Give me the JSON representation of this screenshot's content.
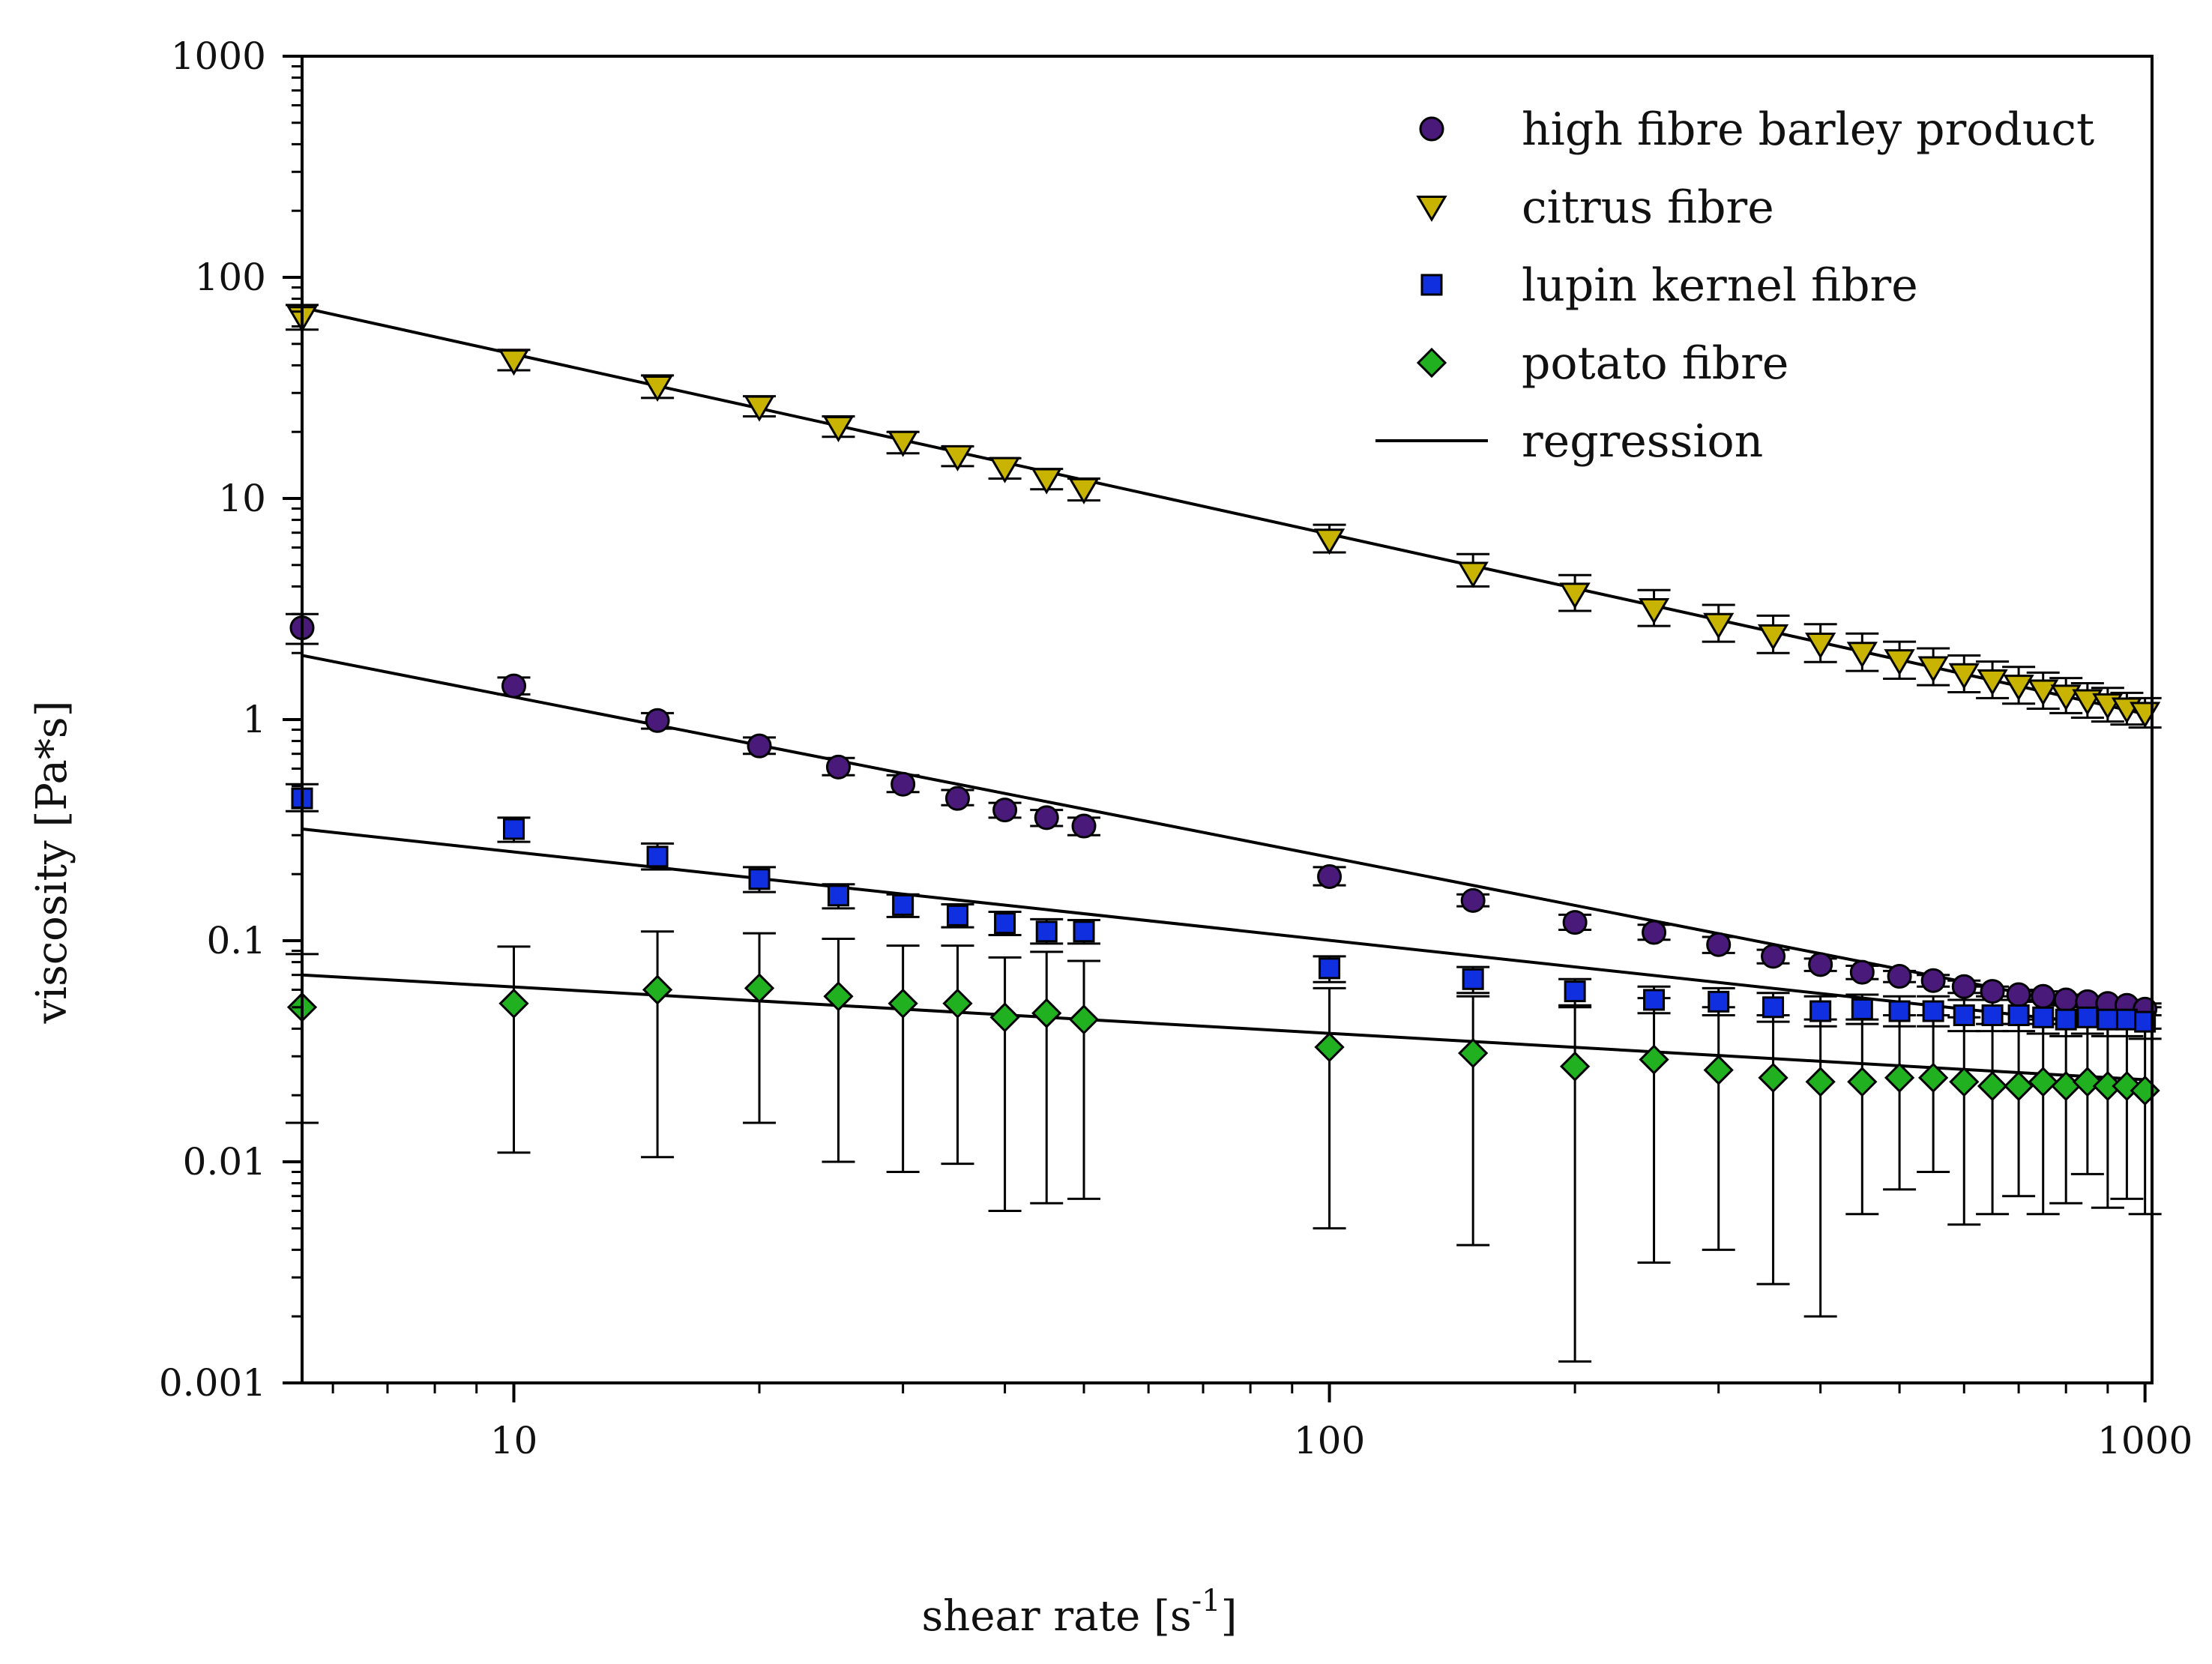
{
  "chart_data": {
    "type": "scatter",
    "xscale": "log",
    "yscale": "log",
    "xlim": [
      5.5,
      1020
    ],
    "ylim": [
      0.001,
      1000
    ],
    "xlabel": "shear rate [s",
    "xlabel_superscript": "-1",
    "xlabel_suffix": "]",
    "ylabel": "viscosity [Pa*s]",
    "grid": false,
    "legend_position": "top-right",
    "x_ticks": [
      {
        "value": 10,
        "label": "10"
      },
      {
        "value": 100,
        "label": "100"
      },
      {
        "value": 1000,
        "label": "1000"
      }
    ],
    "y_ticks": [
      {
        "value": 1000,
        "label": "1000"
      },
      {
        "value": 100,
        "label": "100"
      },
      {
        "value": 10,
        "label": "10"
      },
      {
        "value": 1,
        "label": "1"
      },
      {
        "value": 0.1,
        "label": "0.1"
      },
      {
        "value": 0.01,
        "label": "0.01"
      },
      {
        "value": 0.001,
        "label": "0.001"
      }
    ],
    "x": [
      5.5,
      10,
      15,
      20,
      25,
      30,
      35,
      40,
      45,
      50,
      100,
      150,
      200,
      250,
      300,
      350,
      400,
      450,
      500,
      550,
      600,
      650,
      700,
      750,
      800,
      850,
      900,
      950,
      1000
    ],
    "series": [
      {
        "name": "high fibre barley product",
        "marker": "circle",
        "color": "#4a1a7a",
        "values": [
          2.6,
          1.42,
          0.99,
          0.76,
          0.61,
          0.51,
          0.44,
          0.39,
          0.36,
          0.33,
          0.195,
          0.152,
          0.121,
          0.109,
          0.096,
          0.085,
          0.078,
          0.072,
          0.069,
          0.066,
          0.062,
          0.059,
          0.057,
          0.056,
          0.054,
          0.053,
          0.052,
          0.051,
          0.049
        ],
        "err_upper": [
          3.0,
          1.55,
          1.07,
          0.83,
          0.67,
          0.56,
          0.48,
          0.42,
          0.39,
          0.36,
          0.215,
          0.162,
          0.131,
          0.118,
          0.104,
          0.091,
          0.083,
          0.077,
          0.073,
          0.07,
          0.066,
          0.062,
          0.06,
          0.059,
          0.057,
          0.056,
          0.055,
          0.054,
          0.052
        ],
        "err_lower": [
          2.2,
          1.3,
          0.91,
          0.7,
          0.56,
          0.47,
          0.41,
          0.36,
          0.33,
          0.3,
          0.178,
          0.143,
          0.112,
          0.101,
          0.088,
          0.079,
          0.073,
          0.067,
          0.065,
          0.062,
          0.058,
          0.056,
          0.054,
          0.053,
          0.051,
          0.05,
          0.049,
          0.048,
          0.046
        ]
      },
      {
        "name": "citrus fibre",
        "marker": "triangle-down",
        "color": "#c8b400",
        "values": [
          66,
          42,
          32,
          26,
          21,
          18,
          15.5,
          13.7,
          12.2,
          11,
          6.5,
          4.6,
          3.7,
          3.15,
          2.7,
          2.4,
          2.2,
          2.0,
          1.85,
          1.72,
          1.6,
          1.5,
          1.42,
          1.35,
          1.28,
          1.22,
          1.17,
          1.12,
          1.07
        ],
        "err_upper": [
          75,
          47,
          36,
          29,
          23.5,
          20,
          17.2,
          15.2,
          13.6,
          12.3,
          7.6,
          5.6,
          4.5,
          3.85,
          3.3,
          2.95,
          2.7,
          2.45,
          2.25,
          2.1,
          1.95,
          1.83,
          1.73,
          1.63,
          1.54,
          1.46,
          1.39,
          1.32,
          1.25
        ],
        "err_lower": [
          58,
          38,
          28.5,
          23.5,
          19,
          16,
          14,
          12.3,
          11,
          9.8,
          5.7,
          4.0,
          3.1,
          2.65,
          2.25,
          2.0,
          1.82,
          1.66,
          1.53,
          1.43,
          1.33,
          1.25,
          1.18,
          1.12,
          1.07,
          1.02,
          0.98,
          0.95,
          0.92
        ]
      },
      {
        "name": "lupin kernel fibre",
        "marker": "square",
        "color": "#1030e0",
        "values": [
          0.44,
          0.32,
          0.24,
          0.19,
          0.16,
          0.145,
          0.13,
          0.12,
          0.11,
          0.11,
          0.075,
          0.067,
          0.059,
          0.054,
          0.053,
          0.05,
          0.048,
          0.049,
          0.048,
          0.048,
          0.046,
          0.046,
          0.046,
          0.045,
          0.044,
          0.045,
          0.044,
          0.044,
          0.043
        ],
        "err_upper": [
          0.51,
          0.36,
          0.275,
          0.215,
          0.18,
          0.162,
          0.146,
          0.135,
          0.125,
          0.124,
          0.085,
          0.076,
          0.067,
          0.062,
          0.061,
          0.058,
          0.056,
          0.057,
          0.056,
          0.056,
          0.054,
          0.054,
          0.054,
          0.053,
          0.052,
          0.052,
          0.051,
          0.051,
          0.05
        ],
        "err_lower": [
          0.385,
          0.28,
          0.21,
          0.166,
          0.14,
          0.128,
          0.115,
          0.106,
          0.097,
          0.097,
          0.065,
          0.058,
          0.051,
          0.047,
          0.046,
          0.043,
          0.041,
          0.042,
          0.041,
          0.041,
          0.039,
          0.039,
          0.039,
          0.038,
          0.037,
          0.038,
          0.037,
          0.037,
          0.036
        ]
      },
      {
        "name": "potato fibre",
        "marker": "diamond",
        "color": "#20b020",
        "values": [
          0.05,
          0.052,
          0.06,
          0.061,
          0.056,
          0.052,
          0.052,
          0.045,
          0.047,
          0.044,
          0.033,
          0.031,
          0.027,
          0.029,
          0.026,
          0.024,
          0.023,
          0.023,
          0.024,
          0.024,
          0.023,
          0.022,
          0.022,
          0.023,
          0.022,
          0.023,
          0.022,
          0.022,
          0.021
        ],
        "err_upper": [
          0.087,
          0.094,
          0.11,
          0.108,
          0.102,
          0.095,
          0.095,
          0.084,
          0.089,
          0.081,
          0.061,
          0.056,
          0.05,
          0.055,
          0.05,
          0.046,
          0.044,
          0.044,
          0.046,
          0.046,
          0.045,
          0.042,
          0.042,
          0.044,
          0.042,
          0.044,
          0.042,
          0.042,
          0.04
        ],
        "err_lower": [
          0.015,
          0.011,
          0.0105,
          0.015,
          0.01,
          0.009,
          0.0098,
          0.006,
          0.0065,
          0.0068,
          0.005,
          0.0042,
          0.00125,
          0.0035,
          0.004,
          0.0028,
          0.002,
          0.0058,
          0.0075,
          0.009,
          0.0052,
          0.0058,
          0.007,
          0.0058,
          0.0065,
          0.0088,
          0.0062,
          0.0068,
          0.0058
        ]
      }
    ],
    "regression": [
      {
        "series": "high fibre barley product",
        "x_range": [
          5.5,
          1000
        ],
        "y_range": [
          1.95,
          0.045
        ]
      },
      {
        "series": "citrus fibre",
        "x_range": [
          5.5,
          1000
        ],
        "y_range": [
          73,
          1.06
        ]
      },
      {
        "series": "lupin kernel fibre",
        "x_range": [
          5.5,
          1000
        ],
        "y_range": [
          0.32,
          0.04
        ]
      },
      {
        "series": "potato fibre",
        "x_range": [
          5.5,
          1000
        ],
        "y_range": [
          0.07,
          0.0235
        ]
      }
    ],
    "legend": [
      {
        "label": "high fibre barley product",
        "marker": "circle",
        "color": "#4a1a7a"
      },
      {
        "label": "citrus fibre",
        "marker": "triangle-down",
        "color": "#c8b400"
      },
      {
        "label": "lupin kernel fibre",
        "marker": "square",
        "color": "#1030e0"
      },
      {
        "label": "potato fibre",
        "marker": "diamond",
        "color": "#20b020"
      },
      {
        "label": "regression",
        "marker": "line",
        "color": "#000000"
      }
    ]
  }
}
